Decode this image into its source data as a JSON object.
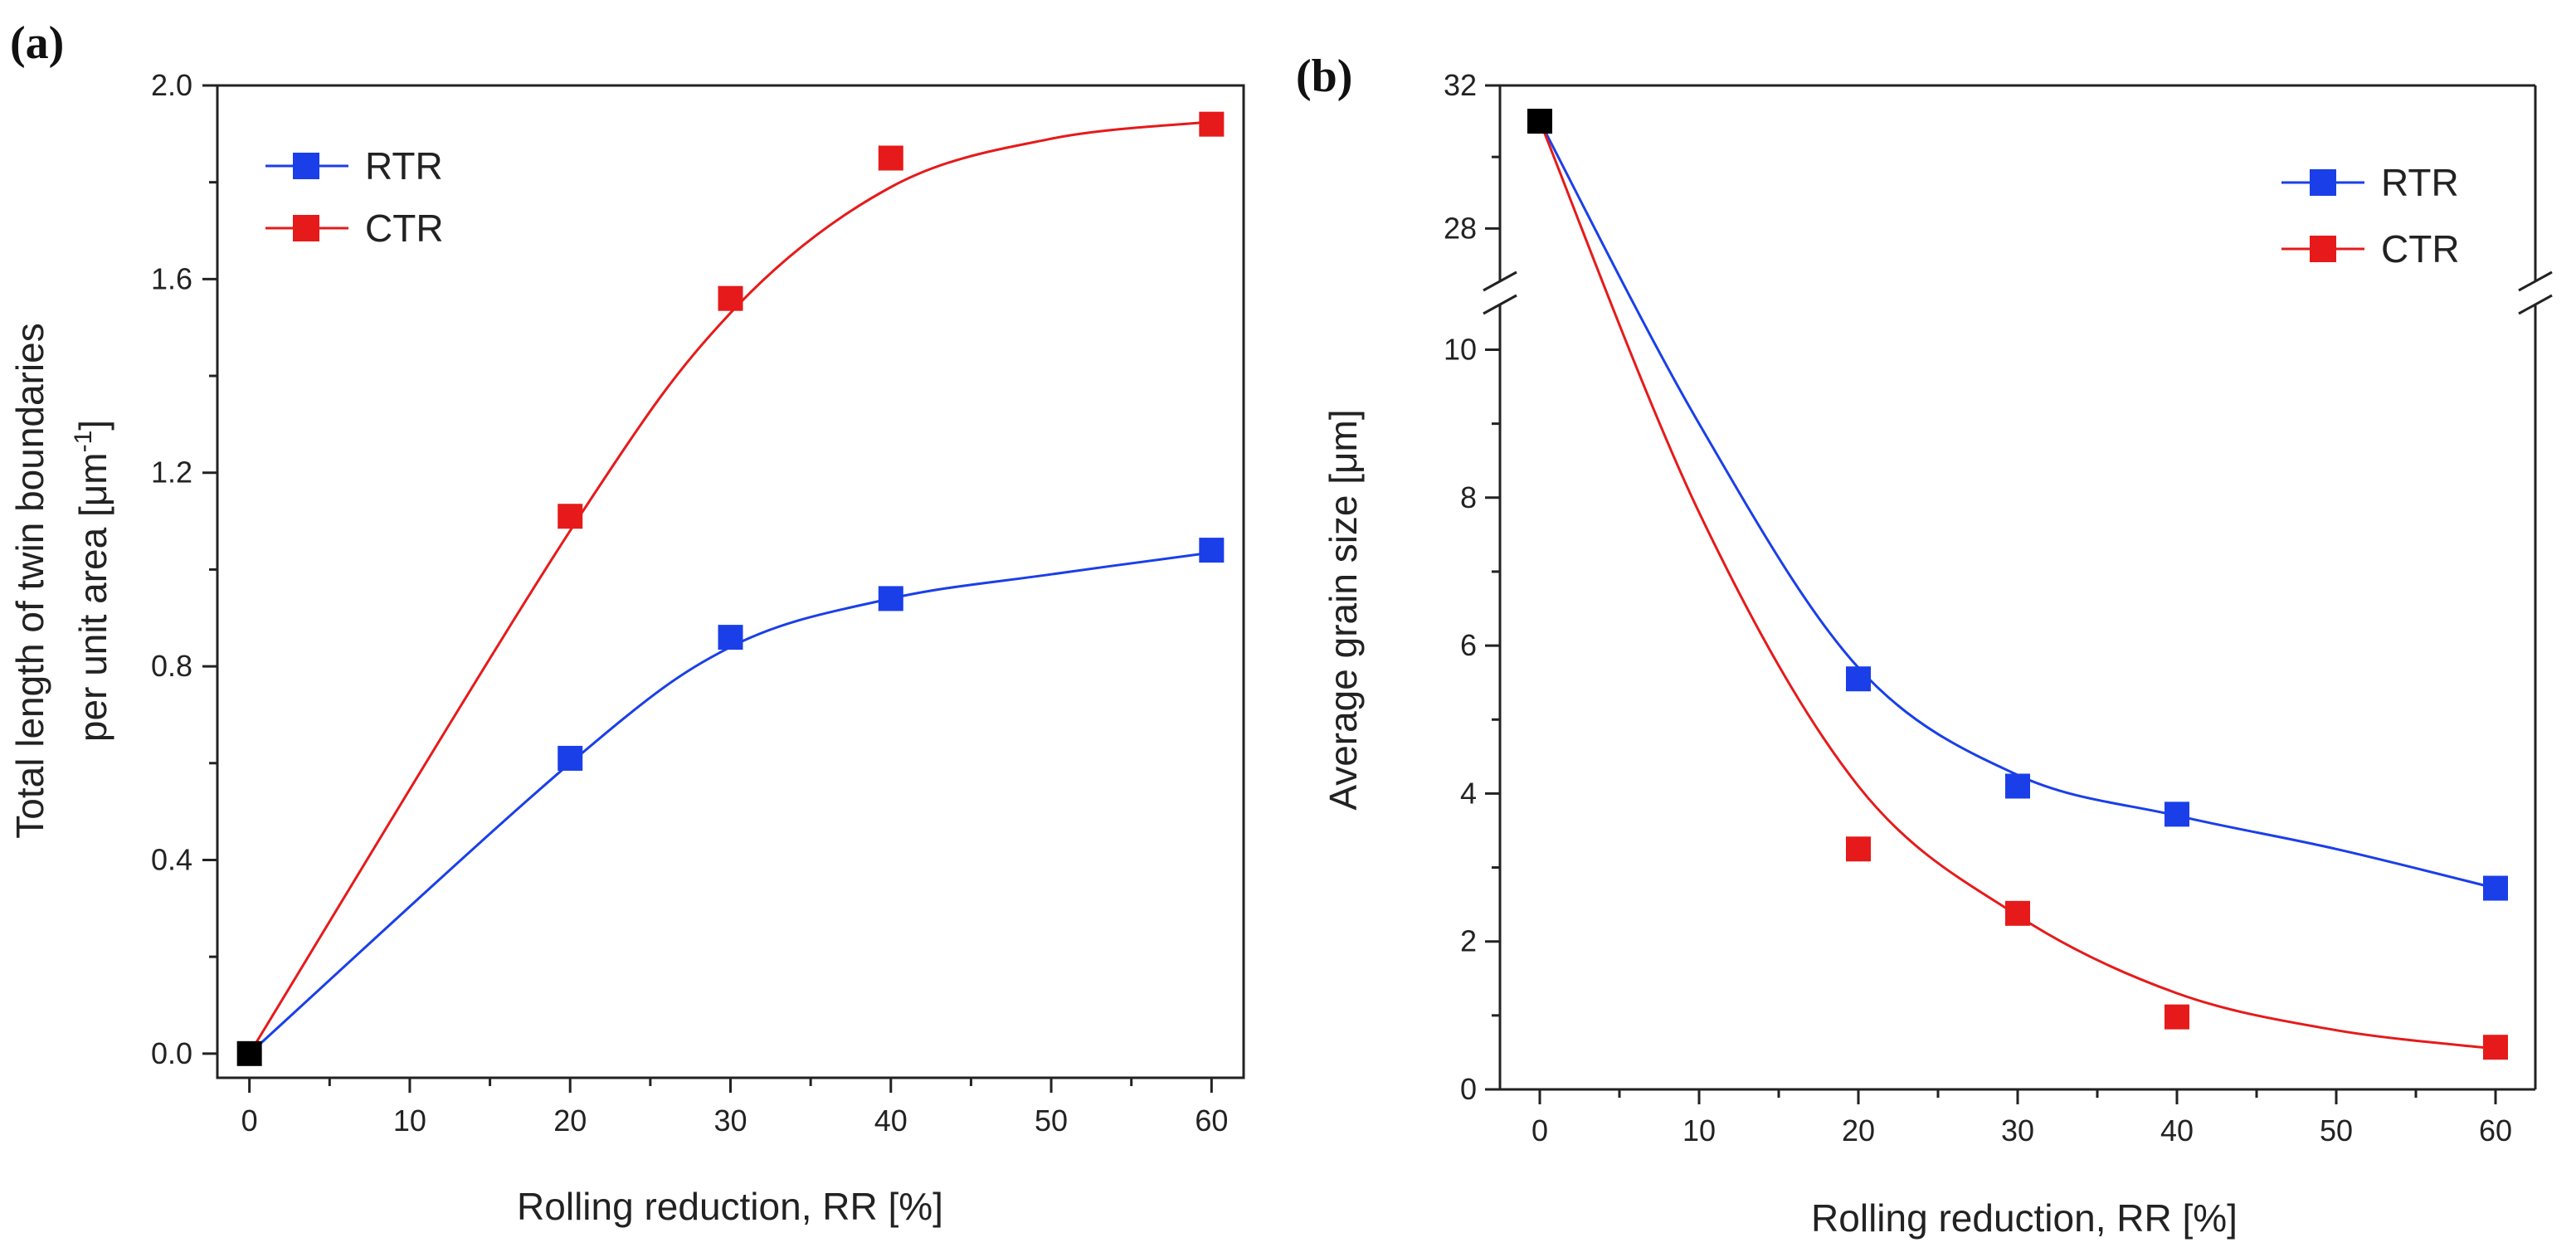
{
  "colors": {
    "rtr": "#1a3fe8",
    "ctr": "#e61a1a",
    "origin": "#000000",
    "axis": "#222222"
  },
  "chart_data": [
    {
      "type": "line",
      "panel_label": "(a)",
      "xlabel": "Rolling reduction, RR [%]",
      "ylabel_line1": "Total length of twin boundaries",
      "ylabel_line2_prefix": "per unit area [μm",
      "ylabel_line2_sup": "-1",
      "ylabel_line2_suffix": "]",
      "xlim": [
        -2,
        62
      ],
      "ylim": [
        -0.05,
        2.0
      ],
      "x_ticks": [
        0,
        10,
        20,
        30,
        40,
        50,
        60
      ],
      "x_tick_labels": [
        "0",
        "10",
        "20",
        "30",
        "40",
        "50",
        "60"
      ],
      "y_ticks": [
        0.0,
        0.4,
        0.8,
        1.2,
        1.6,
        2.0
      ],
      "y_tick_labels": [
        "0.0",
        "0.4",
        "0.8",
        "1.2",
        "1.6",
        "2.0"
      ],
      "legend": [
        "RTR",
        "CTR"
      ],
      "legend_position": "top-left",
      "origin_point": {
        "x": 0,
        "y": 0.0
      },
      "series": [
        {
          "name": "RTR",
          "x": [
            20,
            30,
            40,
            60
          ],
          "values": [
            0.61,
            0.86,
            0.94,
            1.04
          ],
          "fit_x": [
            0,
            20,
            30,
            40,
            50,
            60
          ],
          "fit_y": [
            0.0,
            0.6,
            0.84,
            0.94,
            0.99,
            1.035
          ]
        },
        {
          "name": "CTR",
          "x": [
            20,
            30,
            40,
            60
          ],
          "values": [
            1.11,
            1.56,
            1.85,
            1.92
          ],
          "fit_x": [
            0,
            20,
            30,
            40,
            50,
            60
          ],
          "fit_y": [
            0.0,
            1.08,
            1.53,
            1.79,
            1.89,
            1.925
          ]
        }
      ]
    },
    {
      "type": "line",
      "panel_label": "(b)",
      "xlabel": "Rolling reduction, RR [%]",
      "ylabel": "Average grain size [μm]",
      "xlim": [
        -2.5,
        62.5
      ],
      "ylim": [
        0,
        10.6
      ],
      "ylim_upper": [
        26.5,
        32
      ],
      "axis_break": true,
      "x_ticks": [
        0,
        10,
        20,
        30,
        40,
        50,
        60
      ],
      "x_tick_labels": [
        "0",
        "10",
        "20",
        "30",
        "40",
        "50",
        "60"
      ],
      "y_ticks": [
        0,
        2,
        4,
        6,
        8,
        10
      ],
      "y_tick_labels": [
        "0",
        "2",
        "4",
        "6",
        "8",
        "10"
      ],
      "y_ticks_upper": [
        28,
        32
      ],
      "y_tick_labels_upper": [
        "28",
        "32"
      ],
      "legend": [
        "RTR",
        "CTR"
      ],
      "legend_position": "top-right",
      "origin_point": {
        "x": 0,
        "y": 31.0
      },
      "series": [
        {
          "name": "RTR",
          "x": [
            20,
            30,
            40,
            60
          ],
          "values": [
            5.55,
            4.1,
            3.72,
            2.72
          ],
          "fit_x": [
            0,
            10,
            20,
            30,
            40,
            50,
            60
          ],
          "fit_y": [
            31.0,
            9.0,
            5.7,
            4.25,
            3.7,
            3.25,
            2.72
          ]
        },
        {
          "name": "CTR",
          "x": [
            20,
            30,
            40,
            60
          ],
          "values": [
            3.25,
            2.38,
            0.98,
            0.57
          ],
          "fit_x": [
            0,
            10,
            20,
            30,
            40,
            50,
            60
          ],
          "fit_y": [
            31.0,
            7.8,
            4.1,
            2.35,
            1.3,
            0.8,
            0.55
          ]
        }
      ]
    }
  ]
}
